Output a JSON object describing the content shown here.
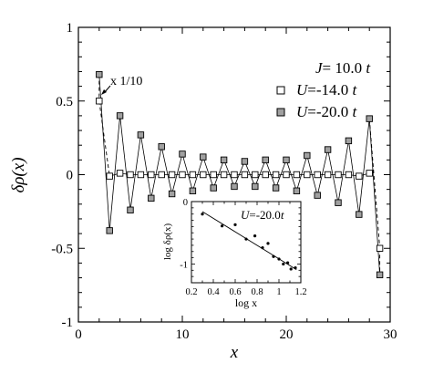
{
  "chart_data": [
    {
      "type": "line",
      "ylabel": "δρ(x)",
      "xlabel": "x",
      "xlim": [
        0,
        30
      ],
      "ylim": [
        -1,
        1
      ],
      "x_ticks": [
        0,
        10,
        20,
        30
      ],
      "y_ticks": [
        -1,
        -0.5,
        0,
        0.5,
        1
      ],
      "x_tick_labels": [
        "0",
        "10",
        "20",
        "30"
      ],
      "y_tick_labels": [
        "-1",
        "-0.5",
        "0",
        "0.5",
        "1"
      ],
      "grid": false,
      "legend_position": "top-right",
      "legend_header": {
        "symbol": "J",
        "value": "= 10.0",
        "unit": "t"
      },
      "annotation": "x 1/10",
      "series": [
        {
          "name": "U=-14.0t",
          "legend_symbol": "U",
          "legend_value": "=-14.0",
          "legend_unit": "t",
          "marker": "open-square",
          "color": "#ffffff",
          "line": "solid",
          "x": [
            2,
            3,
            4,
            5,
            6,
            7,
            8,
            9,
            10,
            11,
            12,
            13,
            14,
            15,
            16,
            17,
            18,
            19,
            20,
            21,
            22,
            23,
            24,
            25,
            26,
            27,
            28,
            29
          ],
          "y": [
            0.5,
            -0.01,
            0.01,
            0.0,
            0.0,
            0.0,
            0.0,
            0.0,
            0.0,
            0.0,
            0.0,
            0.0,
            0.0,
            0.0,
            0.0,
            0.0,
            0.0,
            0.0,
            0.0,
            0.0,
            0.0,
            0.0,
            0.0,
            0.0,
            0.0,
            -0.01,
            0.01,
            -0.5
          ]
        },
        {
          "name": "U=-20.0t",
          "legend_symbol": "U",
          "legend_value": "=-20.0",
          "legend_unit": "t",
          "marker": "filled-square",
          "color": "#a0a0a0",
          "line": "solid",
          "x": [
            2,
            3,
            4,
            5,
            6,
            7,
            8,
            9,
            10,
            11,
            12,
            13,
            14,
            15,
            16,
            17,
            18,
            19,
            20,
            21,
            22,
            23,
            24,
            25,
            26,
            27,
            28,
            29
          ],
          "y": [
            0.68,
            -0.38,
            0.4,
            -0.24,
            0.27,
            -0.16,
            0.19,
            -0.13,
            0.14,
            -0.11,
            0.12,
            -0.09,
            0.1,
            -0.08,
            0.09,
            -0.08,
            0.1,
            -0.09,
            0.1,
            -0.11,
            0.13,
            -0.14,
            0.17,
            -0.19,
            0.23,
            -0.27,
            0.38,
            -0.68
          ]
        }
      ],
      "connectors": [
        {
          "from": [
            2,
            0.68
          ],
          "to": [
            2,
            0.5
          ],
          "line": "dashed"
        },
        {
          "from": [
            2,
            0.5
          ],
          "to": [
            3,
            -0.01
          ],
          "line": "dashed"
        },
        {
          "from": [
            28,
            0.38
          ],
          "to": [
            29,
            -0.5
          ],
          "line": "dashed"
        },
        {
          "from": [
            29,
            -0.5
          ],
          "to": [
            29,
            -0.68
          ],
          "line": "dashed"
        }
      ]
    },
    {
      "type": "scatter",
      "title": "U=-20.0t",
      "title_symbol": "U",
      "title_value": "=-20.0",
      "title_unit": "t",
      "ylabel": "log δρ(x)",
      "xlabel": "log x",
      "xlim": [
        0.2,
        1.2
      ],
      "ylim": [
        -1.3,
        0.0
      ],
      "x_ticks": [
        0.2,
        0.4,
        0.6,
        0.8,
        1.0,
        1.2
      ],
      "x_tick_labels": [
        "0.2",
        "0.4",
        "0.6",
        "0.8",
        "1",
        "1.2"
      ],
      "y_ticks": [
        0,
        -1
      ],
      "y_tick_labels": [
        "0",
        "-1"
      ],
      "points": {
        "x": [
          0.3,
          0.48,
          0.6,
          0.7,
          0.78,
          0.85,
          0.9,
          0.95,
          1.0,
          1.04,
          1.08,
          1.11,
          1.15
        ],
        "y": [
          -0.2,
          -0.39,
          -0.37,
          -0.6,
          -0.55,
          -0.74,
          -0.67,
          -0.88,
          -0.92,
          -1.0,
          -0.98,
          -1.08,
          -1.06
        ]
      },
      "fit_line": {
        "x": [
          0.3,
          1.16
        ],
        "y": [
          -0.16,
          -1.09
        ]
      }
    }
  ]
}
